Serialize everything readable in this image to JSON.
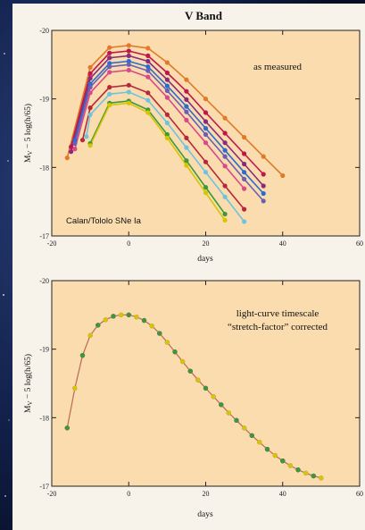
{
  "figure": {
    "title": "V Band",
    "colors": {
      "plot_bg": "#fbdcaf",
      "frame_bg": "#f8f3ea",
      "space_bg": "#0b1530"
    }
  },
  "chart_data": [
    {
      "type": "line",
      "title": "V Band",
      "annotation": "as measured",
      "label_bottom_left": "Calan/Tololo SNe Ia",
      "xlabel": "days",
      "ylabel": "M_V − 5 log(h/65)",
      "ylabel_main": "M",
      "ylabel_sub": "V",
      "ylabel_rest": " − 5 log(h/65)",
      "xlim": [
        -20,
        60
      ],
      "ylim": [
        -17,
        -20
      ],
      "xticks": [
        -20,
        0,
        20,
        40,
        60
      ],
      "yticks": [
        -20,
        -19,
        -18,
        -17
      ],
      "grid": false,
      "series": [
        {
          "color": "#e07a2a",
          "peak_mag": -19.78,
          "stretch": 1.15,
          "x": [
            -16,
            -10,
            -5,
            0,
            5,
            10,
            15,
            20,
            25,
            30,
            35,
            40
          ],
          "y": [
            -18.14,
            -19.46,
            -19.75,
            -19.78,
            -19.74,
            -19.53,
            -19.28,
            -19.0,
            -18.72,
            -18.44,
            -18.16,
            -17.88
          ]
        },
        {
          "color": "#c0174a",
          "peak_mag": -19.7,
          "stretch": 1.05,
          "x": [
            -15,
            -10,
            -5,
            0,
            5,
            10,
            15,
            20,
            25,
            30,
            35
          ],
          "y": [
            -18.3,
            -19.37,
            -19.67,
            -19.7,
            -19.63,
            -19.38,
            -19.11,
            -18.8,
            -18.5,
            -18.2,
            -17.9
          ]
        },
        {
          "color": "#8a2b7a",
          "peak_mag": -19.63,
          "stretch": 1.0,
          "x": [
            -15,
            -10,
            -5,
            0,
            5,
            10,
            15,
            20,
            25,
            30,
            35
          ],
          "y": [
            -18.23,
            -19.3,
            -19.6,
            -19.63,
            -19.55,
            -19.28,
            -18.99,
            -18.67,
            -18.36,
            -18.05,
            -17.73
          ]
        },
        {
          "color": "#2d6ccf",
          "peak_mag": -19.55,
          "stretch": 0.98,
          "x": [
            -14,
            -10,
            -5,
            0,
            5,
            10,
            15,
            20,
            25,
            30,
            35
          ],
          "y": [
            -18.4,
            -19.22,
            -19.52,
            -19.55,
            -19.47,
            -19.19,
            -18.89,
            -18.57,
            -18.25,
            -17.93,
            -17.62
          ]
        },
        {
          "color": "#6b5fb3",
          "peak_mag": -19.5,
          "stretch": 0.95,
          "x": [
            -14,
            -10,
            -5,
            0,
            5,
            10,
            15,
            20,
            25,
            30,
            35
          ],
          "y": [
            -18.35,
            -19.17,
            -19.47,
            -19.5,
            -19.41,
            -19.12,
            -18.81,
            -18.48,
            -18.16,
            -17.83,
            -17.51
          ]
        },
        {
          "color": "#d64a8a",
          "peak_mag": -19.42,
          "stretch": 0.92,
          "x": [
            -14,
            -10,
            -5,
            0,
            5,
            10,
            15,
            20,
            25,
            30
          ],
          "y": [
            -18.27,
            -19.09,
            -19.39,
            -19.42,
            -19.32,
            -19.02,
            -18.69,
            -18.36,
            -18.02,
            -17.69
          ]
        },
        {
          "color": "#b52a3a",
          "peak_mag": -19.2,
          "stretch": 0.88,
          "x": [
            -12,
            -10,
            -5,
            0,
            5,
            10,
            15,
            20,
            25,
            30
          ],
          "y": [
            -18.4,
            -18.87,
            -19.17,
            -19.2,
            -19.09,
            -18.77,
            -18.43,
            -18.08,
            -17.73,
            -17.39
          ]
        },
        {
          "color": "#6ec3e0",
          "peak_mag": -19.1,
          "stretch": 0.85,
          "x": [
            -11,
            -10,
            -5,
            0,
            5,
            10,
            15,
            20,
            25,
            30
          ],
          "y": [
            -18.45,
            -18.77,
            -19.07,
            -19.1,
            -18.98,
            -18.65,
            -18.29,
            -17.93,
            -17.57,
            -17.21
          ]
        },
        {
          "color": "#3a9a3a",
          "peak_mag": -18.97,
          "stretch": 0.8,
          "x": [
            -10,
            -5,
            0,
            5,
            10,
            15,
            20,
            25
          ],
          "y": [
            -18.35,
            -18.94,
            -18.97,
            -18.84,
            -18.48,
            -18.1,
            -17.71,
            -17.32
          ]
        },
        {
          "color": "#d8c400",
          "peak_mag": -18.94,
          "stretch": 0.78,
          "x": [
            -10,
            -5,
            0,
            5,
            10,
            15,
            20,
            25
          ],
          "y": [
            -18.32,
            -18.91,
            -18.94,
            -18.8,
            -18.43,
            -18.03,
            -17.63,
            -17.23
          ]
        }
      ]
    },
    {
      "type": "scatter",
      "title": "",
      "annotation_line1": "light-curve timescale",
      "annotation_line2": "“stretch-factor” corrected",
      "xlabel": "days",
      "ylabel": "M_V − 5 log(h/65)",
      "ylabel_main": "M",
      "ylabel_sub": "V",
      "ylabel_rest": " − 5 log(h/65)",
      "xlim": [
        -20,
        60
      ],
      "ylim": [
        -17,
        -20
      ],
      "xticks": [
        -20,
        0,
        20,
        40,
        60
      ],
      "yticks": [
        -20,
        -19,
        -18,
        -17
      ],
      "grid": false,
      "template": {
        "color": "#b86a5a",
        "x": [
          -16,
          -14,
          -12,
          -10,
          -8,
          -6,
          -4,
          -2,
          0,
          2,
          4,
          6,
          8,
          10,
          12,
          14,
          16,
          18,
          20,
          22,
          24,
          26,
          28,
          30,
          32,
          34,
          36,
          38,
          40,
          42,
          44,
          46,
          48,
          50
        ],
        "y": [
          -17.85,
          -18.43,
          -18.91,
          -19.2,
          -19.35,
          -19.43,
          -19.48,
          -19.5,
          -19.5,
          -19.47,
          -19.42,
          -19.34,
          -19.23,
          -19.1,
          -18.96,
          -18.82,
          -18.68,
          -18.55,
          -18.43,
          -18.31,
          -18.19,
          -18.07,
          -17.96,
          -17.85,
          -17.74,
          -17.64,
          -17.54,
          -17.45,
          -17.37,
          -17.3,
          -17.24,
          -17.19,
          -17.15,
          -17.12
        ]
      }
    }
  ]
}
